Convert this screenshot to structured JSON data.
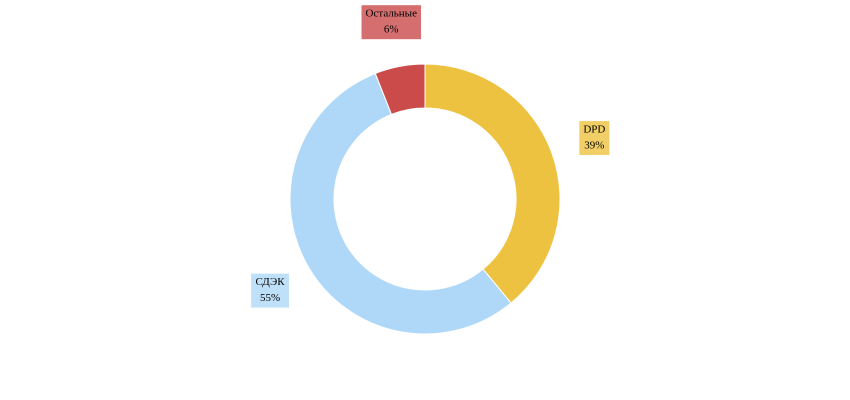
{
  "chart_data": {
    "type": "pie",
    "categories": [
      "DPD",
      "СДЭК",
      "Остальные"
    ],
    "values": [
      39,
      55,
      6
    ],
    "value_labels": [
      "39%",
      "55%",
      "6%"
    ],
    "colors": [
      "#edc240",
      "#afd8f8",
      "#cb4b4b"
    ]
  }
}
